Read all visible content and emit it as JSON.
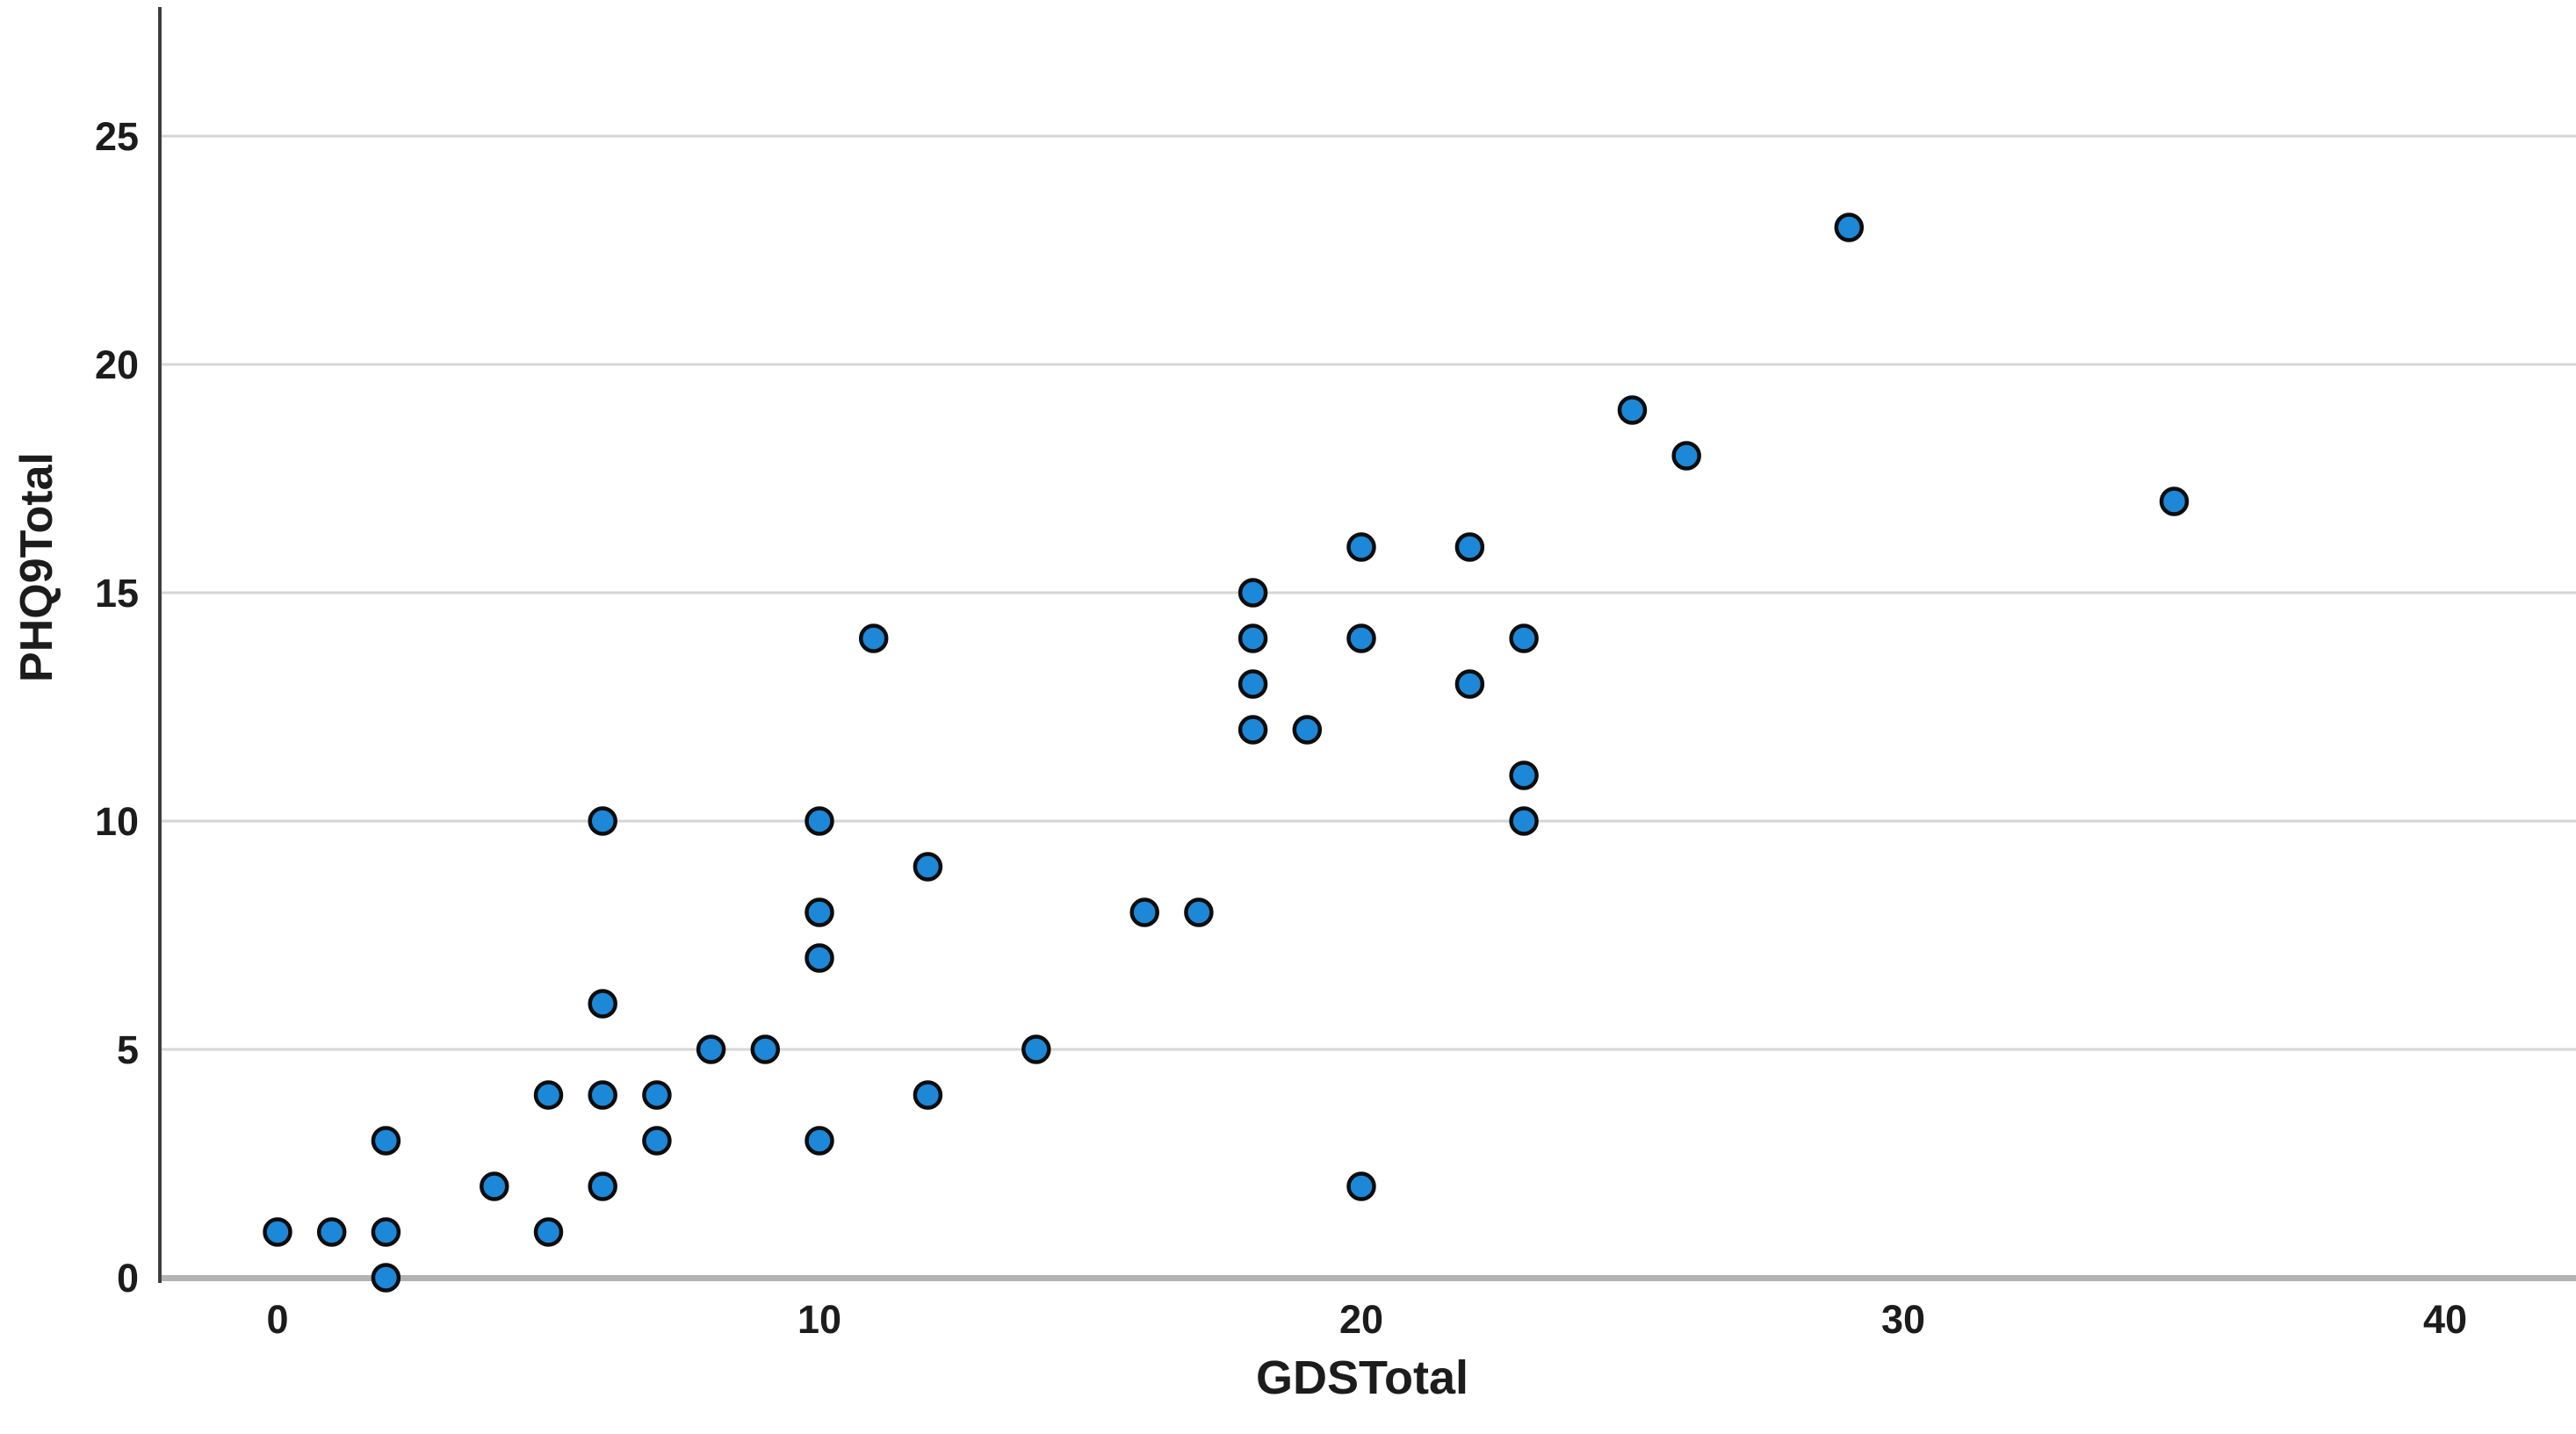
{
  "chart_data": {
    "type": "scatter",
    "title": "",
    "xlabel": "GDSTotal",
    "ylabel": "PHQ9Total",
    "x_ticks": [
      0,
      10,
      20,
      30,
      40
    ],
    "y_ticks": [
      0,
      5,
      10,
      15,
      20,
      25
    ],
    "xlim": [
      -2.2,
      42.4
    ],
    "ylim": [
      0,
      27.4
    ],
    "grid": "horizontal-only",
    "legend": "none",
    "points": [
      [
        0,
        1
      ],
      [
        1,
        1
      ],
      [
        2,
        0
      ],
      [
        2,
        1
      ],
      [
        2,
        3
      ],
      [
        4,
        2
      ],
      [
        5,
        1
      ],
      [
        5,
        4
      ],
      [
        6,
        2
      ],
      [
        6,
        4
      ],
      [
        6,
        6
      ],
      [
        6,
        10
      ],
      [
        7,
        3
      ],
      [
        7,
        4
      ],
      [
        8,
        5
      ],
      [
        9,
        5
      ],
      [
        10,
        3
      ],
      [
        10,
        7
      ],
      [
        10,
        8
      ],
      [
        10,
        10
      ],
      [
        11,
        14
      ],
      [
        12,
        4
      ],
      [
        12,
        9
      ],
      [
        14,
        5
      ],
      [
        16,
        8
      ],
      [
        17,
        8
      ],
      [
        18,
        12
      ],
      [
        18,
        13
      ],
      [
        18,
        14
      ],
      [
        18,
        15
      ],
      [
        19,
        12
      ],
      [
        20,
        2
      ],
      [
        20,
        14
      ],
      [
        20,
        16
      ],
      [
        22,
        13
      ],
      [
        22,
        16
      ],
      [
        23,
        10
      ],
      [
        23,
        11
      ],
      [
        23,
        14
      ],
      [
        25,
        19
      ],
      [
        26,
        18
      ],
      [
        29,
        23
      ],
      [
        35,
        17
      ]
    ],
    "colors": {
      "point_fill": "#1d87d8",
      "point_stroke": "#0d0d0d",
      "gridline": "#d6d6d6",
      "y_axis_line": "#3f3f3f",
      "x_axis_line": "#b3b3b3",
      "tick_text": "#1c1c1c",
      "background": "#ffffff"
    }
  }
}
